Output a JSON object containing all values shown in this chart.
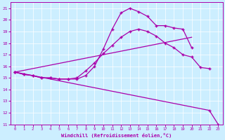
{
  "xlabel": "Windchill (Refroidissement éolien,°C)",
  "bg_color": "#cceeff",
  "line_color": "#aa00aa",
  "grid_color": "#aaddcc",
  "xlim": [
    -0.5,
    23.5
  ],
  "ylim": [
    11,
    21.5
  ],
  "xticks": [
    0,
    1,
    2,
    3,
    4,
    5,
    6,
    7,
    8,
    9,
    10,
    11,
    12,
    13,
    14,
    15,
    16,
    17,
    18,
    19,
    20,
    21,
    22,
    23
  ],
  "yticks": [
    11,
    12,
    13,
    14,
    15,
    16,
    17,
    18,
    19,
    20,
    21
  ],
  "curve1_x": [
    0,
    1,
    2,
    3,
    4,
    5,
    6,
    7,
    8,
    9,
    10,
    11,
    12,
    13,
    14,
    15,
    16,
    17,
    18,
    19,
    20
  ],
  "curve1_y": [
    15.5,
    15.3,
    15.2,
    15.0,
    15.0,
    14.9,
    14.9,
    14.9,
    15.2,
    16.0,
    17.5,
    19.2,
    20.6,
    21.0,
    20.7,
    20.3,
    19.5,
    19.5,
    19.3,
    19.2,
    17.6
  ],
  "curve2_x": [
    0,
    1,
    2,
    3,
    4,
    5,
    6,
    7,
    8,
    9,
    10,
    11,
    12,
    13,
    14,
    15,
    16,
    17,
    18,
    19,
    20,
    21,
    22
  ],
  "curve2_y": [
    15.5,
    15.3,
    15.2,
    15.0,
    15.0,
    14.9,
    14.9,
    15.0,
    15.6,
    16.3,
    17.1,
    17.8,
    18.5,
    19.0,
    19.2,
    19.0,
    18.6,
    18.0,
    17.6,
    17.0,
    16.8,
    15.9,
    15.8
  ],
  "line1_x": [
    0,
    20
  ],
  "line1_y": [
    15.5,
    18.5
  ],
  "line2_x": [
    0,
    22,
    23
  ],
  "line2_y": [
    15.5,
    12.2,
    11.0
  ]
}
